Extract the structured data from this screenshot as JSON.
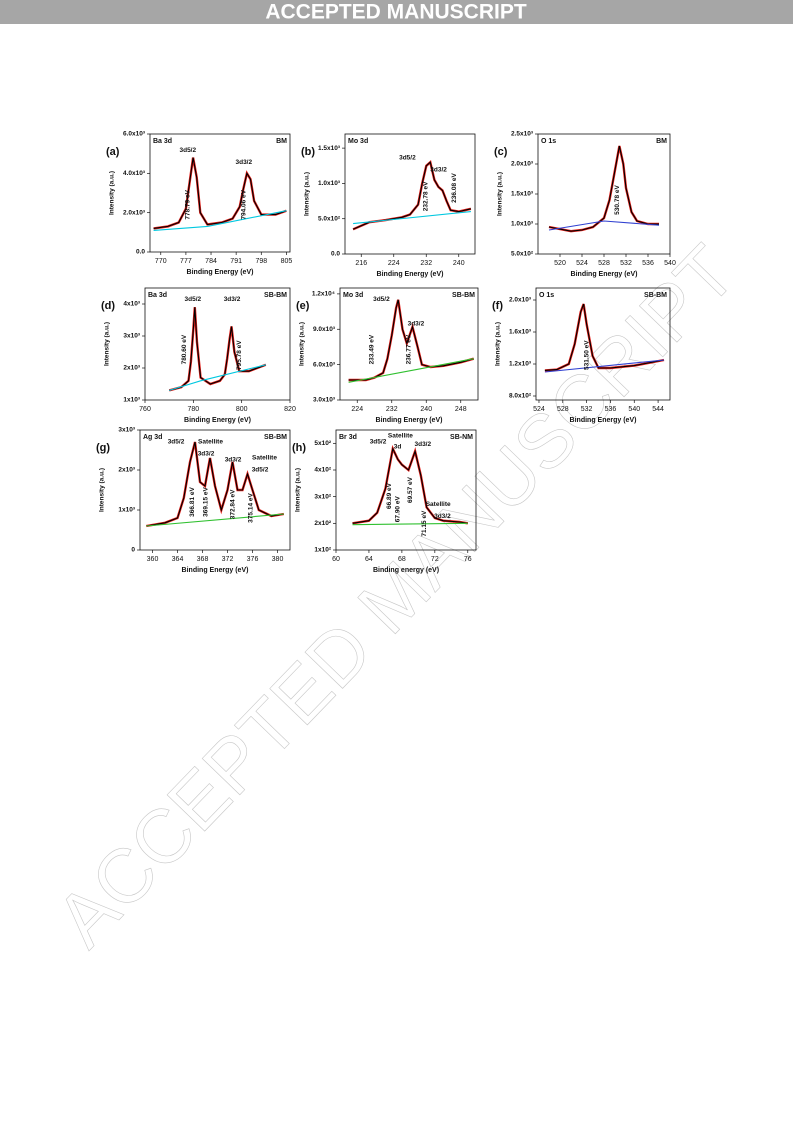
{
  "header": "ACCEPTED MANUSCRIPT",
  "watermark": "ACCEPTED MANUSCRIPT",
  "chart_data": [
    {
      "type": "line",
      "tag": "(a)",
      "title": "Ba 3d",
      "sample": "BM",
      "xlabel": "Binding Energy (eV)",
      "ylabel": "Intensity (a.u.)",
      "xlim": [
        767,
        806
      ],
      "xticks": [
        770,
        777,
        784,
        791,
        798,
        805
      ],
      "ylim": [
        0,
        6000
      ],
      "yticks": [
        {
          "value": 0,
          "label": "0.0"
        },
        {
          "value": 2000,
          "label": "2.0x10³"
        },
        {
          "value": 4000,
          "label": "4.0x10³"
        },
        {
          "value": 6000,
          "label": "6.0x10³"
        }
      ],
      "annotations": [
        "3d5/2",
        "3d3/2",
        "778.79 eV",
        "794.06 eV"
      ],
      "series": [
        {
          "color": "#000000",
          "x": [
            768,
            772,
            775,
            777,
            778,
            779,
            780,
            781,
            783,
            787,
            790,
            792,
            793,
            794,
            795,
            796,
            798,
            802,
            805
          ],
          "values": [
            1200,
            1300,
            1500,
            2200,
            3500,
            4800,
            3800,
            2000,
            1400,
            1500,
            1700,
            2300,
            3200,
            4000,
            3700,
            2600,
            1900,
            1900,
            2100
          ]
        },
        {
          "color": "#00c8e0",
          "x": [
            768,
            783,
            805
          ],
          "values": [
            1100,
            1300,
            2100
          ]
        }
      ]
    },
    {
      "type": "line",
      "tag": "(b)",
      "title": "Mo 3d",
      "xlabel": "Binding Energy (eV)",
      "ylabel": "Intensity (a.u.)",
      "xlim": [
        212,
        244
      ],
      "xticks": [
        216,
        224,
        232,
        240
      ],
      "ylim": [
        0,
        1700
      ],
      "yticks": [
        {
          "value": 0,
          "label": "0.0"
        },
        {
          "value": 500,
          "label": "5.0x10²"
        },
        {
          "value": 1000,
          "label": "1.0x10³"
        },
        {
          "value": 1500,
          "label": "1.5x10³"
        }
      ],
      "annotations": [
        "3d5/2",
        "3d3/2",
        "232.78 eV",
        "236.08 eV"
      ],
      "series": [
        {
          "color": "#000000",
          "x": [
            214,
            218,
            222,
            226,
            228,
            230,
            231,
            232,
            233,
            234,
            235,
            236,
            237,
            238,
            240,
            243
          ],
          "values": [
            350,
            450,
            480,
            520,
            560,
            700,
            1000,
            1250,
            1300,
            1050,
            950,
            900,
            750,
            620,
            600,
            640
          ]
        },
        {
          "color": "#00c8e0",
          "x": [
            214,
            243
          ],
          "values": [
            430,
            600
          ]
        }
      ]
    },
    {
      "type": "line",
      "tag": "(c)",
      "title": "O 1s",
      "sample": "BM",
      "xlabel": "Binding Energy (eV)",
      "ylabel": "Intensity (a.u.)",
      "xlim": [
        516,
        540
      ],
      "xticks": [
        520,
        524,
        528,
        532,
        536,
        540
      ],
      "ylim": [
        500,
        2500
      ],
      "yticks": [
        {
          "value": 500,
          "label": "5.0x10²"
        },
        {
          "value": 1000,
          "label": "1.0x10³"
        },
        {
          "value": 1500,
          "label": "1.5x10³"
        },
        {
          "value": 2000,
          "label": "2.0x10³"
        },
        {
          "value": 2500,
          "label": "2.5x10³"
        }
      ],
      "annotations": [
        "530.78 eV"
      ],
      "series": [
        {
          "color": "#000000",
          "x": [
            518,
            522,
            524,
            526,
            528,
            529,
            530,
            530.8,
            531.5,
            532,
            533,
            534,
            536,
            538
          ],
          "values": [
            950,
            880,
            900,
            950,
            1100,
            1400,
            1900,
            2300,
            2000,
            1600,
            1200,
            1050,
            1000,
            1000
          ]
        },
        {
          "color": "#3040d0",
          "x": [
            518,
            528,
            538
          ],
          "values": [
            900,
            1050,
            980
          ]
        }
      ]
    },
    {
      "type": "line",
      "tag": "(d)",
      "title": "Ba 3d",
      "sample": "SB-BM",
      "xlabel": "Binding Energy (eV)",
      "ylabel": "Intensity (a.u.)",
      "xlim": [
        760,
        820
      ],
      "xticks": [
        760,
        780,
        800,
        820
      ],
      "ylim": [
        1000,
        4500
      ],
      "yticks": [
        {
          "value": 1000,
          "label": "1x10³"
        },
        {
          "value": 2000,
          "label": "2x10³"
        },
        {
          "value": 3000,
          "label": "3x10³"
        },
        {
          "value": 4000,
          "label": "4x10³"
        }
      ],
      "annotations": [
        "3d5/2",
        "3d3/2",
        "780.60 eV",
        "795.78 eV"
      ],
      "series": [
        {
          "color": "#000000",
          "x": [
            770,
            775,
            778,
            779,
            780,
            780.6,
            781.5,
            783,
            787,
            791,
            793,
            794,
            795,
            795.8,
            797,
            799,
            803,
            810
          ],
          "values": [
            1300,
            1400,
            1600,
            2200,
            3200,
            3900,
            2800,
            1700,
            1500,
            1600,
            1800,
            2300,
            2900,
            3300,
            2500,
            1900,
            1900,
            2100
          ]
        },
        {
          "color": "#00c8e0",
          "x": [
            770,
            783,
            810
          ],
          "values": [
            1300,
            1600,
            2100
          ]
        }
      ]
    },
    {
      "type": "line",
      "tag": "(e)",
      "title": "Mo 3d",
      "sample": "SB-BM",
      "xlabel": "Binding Energy (eV)",
      "ylabel": "Intensity (a.u.)",
      "xlim": [
        220,
        252
      ],
      "xticks": [
        224,
        232,
        240,
        248
      ],
      "ylim": [
        3000,
        12500
      ],
      "yticks": [
        {
          "value": 3000,
          "label": "3.0x10³"
        },
        {
          "value": 6000,
          "label": "6.0x10³"
        },
        {
          "value": 9000,
          "label": "9.0x10³"
        },
        {
          "value": 12000,
          "label": "1.2x10⁴"
        }
      ],
      "annotations": [
        "3d5/2",
        "3d3/2",
        "233.49 eV",
        "236.77 eV"
      ],
      "series": [
        {
          "color": "#000000",
          "x": [
            222,
            226,
            228,
            230,
            231,
            232,
            233,
            233.5,
            234.5,
            235.5,
            236.8,
            238,
            239,
            241,
            244,
            248,
            251
          ],
          "values": [
            4700,
            4700,
            4900,
            5300,
            6500,
            8500,
            10800,
            11500,
            9000,
            7800,
            9200,
            7500,
            6000,
            5800,
            5900,
            6200,
            6500
          ]
        },
        {
          "color": "#30c030",
          "x": [
            222,
            238,
            251
          ],
          "values": [
            4500,
            5600,
            6500
          ]
        }
      ]
    },
    {
      "type": "line",
      "tag": "(f)",
      "title": "O 1s",
      "sample": "SB-BM",
      "xlabel": "Binding Energy (eV)",
      "ylabel": "Intensity (a.u.)",
      "xlim": [
        523.5,
        546
      ],
      "xticks": [
        524,
        528,
        532,
        536,
        540,
        544
      ],
      "ylim": [
        750,
        2150
      ],
      "yticks": [
        {
          "value": 800,
          "label": "8.0x10²"
        },
        {
          "value": 1200,
          "label": "1.2x10³"
        },
        {
          "value": 1600,
          "label": "1.6x10³"
        },
        {
          "value": 2000,
          "label": "2.0x10³"
        }
      ],
      "annotations": [
        "531.50 eV"
      ],
      "series": [
        {
          "color": "#000000",
          "x": [
            525,
            527,
            529,
            530,
            531,
            531.5,
            532,
            533,
            534,
            536,
            540,
            545
          ],
          "values": [
            1120,
            1130,
            1200,
            1450,
            1850,
            1950,
            1700,
            1300,
            1150,
            1150,
            1180,
            1250
          ]
        },
        {
          "color": "#3040d0",
          "x": [
            525,
            545
          ],
          "values": [
            1100,
            1250
          ]
        }
      ]
    },
    {
      "type": "line",
      "tag": "(g)",
      "title": "Ag 3d",
      "sample": "SB-BM",
      "xlabel": "Binding Energy  (eV)",
      "ylabel": "Intensity (a.u.)",
      "xlim": [
        358,
        382
      ],
      "xticks": [
        360,
        364,
        368,
        372,
        376,
        380
      ],
      "ylim": [
        0,
        3000
      ],
      "yticks": [
        0,
        {
          "value": 1000,
          "label": "1x10³"
        },
        {
          "value": 2000,
          "label": "2x10³"
        },
        {
          "value": 3000,
          "label": "3x10³"
        }
      ],
      "annotations": [
        "3d5/2",
        "Satellite",
        "3d3/2",
        "3d3/2",
        "Satellite",
        "3d5/2",
        "366.81 eV",
        "369.15 eV",
        "372.84 eV",
        "375.14 eV"
      ],
      "series": [
        {
          "color": "#000000",
          "x": [
            359,
            362,
            364,
            365,
            366,
            366.8,
            367.6,
            368.4,
            369.2,
            370,
            371,
            372,
            372.8,
            373.6,
            374.4,
            375.2,
            376,
            377,
            379,
            381
          ],
          "values": [
            600,
            680,
            800,
            1300,
            2200,
            2700,
            1700,
            1600,
            2300,
            1600,
            1000,
            1500,
            2200,
            1500,
            1500,
            1900,
            1500,
            1000,
            850,
            900
          ]
        },
        {
          "color": "#30c030",
          "x": [
            359,
            381
          ],
          "values": [
            600,
            900
          ]
        }
      ]
    },
    {
      "type": "line",
      "tag": "(h)",
      "title": "Br 3d",
      "sample": "SB-NM",
      "xlabel": "Binding energy (eV)",
      "ylabel": "Intensity (a.u.)",
      "xlim": [
        60,
        77
      ],
      "xticks": [
        60,
        64,
        68,
        72,
        76
      ],
      "ylim": [
        100,
        550
      ],
      "yticks": [
        {
          "value": 100,
          "label": "1x10²"
        },
        {
          "value": 200,
          "label": "2x10²"
        },
        {
          "value": 300,
          "label": "3x10²"
        },
        {
          "value": 400,
          "label": "4x10²"
        },
        {
          "value": 500,
          "label": "5x10²"
        }
      ],
      "annotations": [
        "3d5/2",
        "Satellite",
        "3d",
        "3d3/2",
        "Satellite",
        "3d3/2",
        "66.89 eV",
        "67.90 eV",
        "69.57 eV",
        "71.15 eV"
      ],
      "series": [
        {
          "color": "#000000",
          "x": [
            62,
            64,
            65,
            66,
            66.9,
            67.5,
            68,
            68.8,
            69.6,
            70.3,
            71,
            71.5,
            72,
            73,
            75,
            76
          ],
          "values": [
            200,
            210,
            240,
            330,
            480,
            440,
            420,
            400,
            470,
            380,
            260,
            240,
            220,
            210,
            205,
            200
          ]
        },
        {
          "color": "#30c030",
          "x": [
            62,
            76
          ],
          "values": [
            195,
            200
          ]
        }
      ]
    }
  ]
}
